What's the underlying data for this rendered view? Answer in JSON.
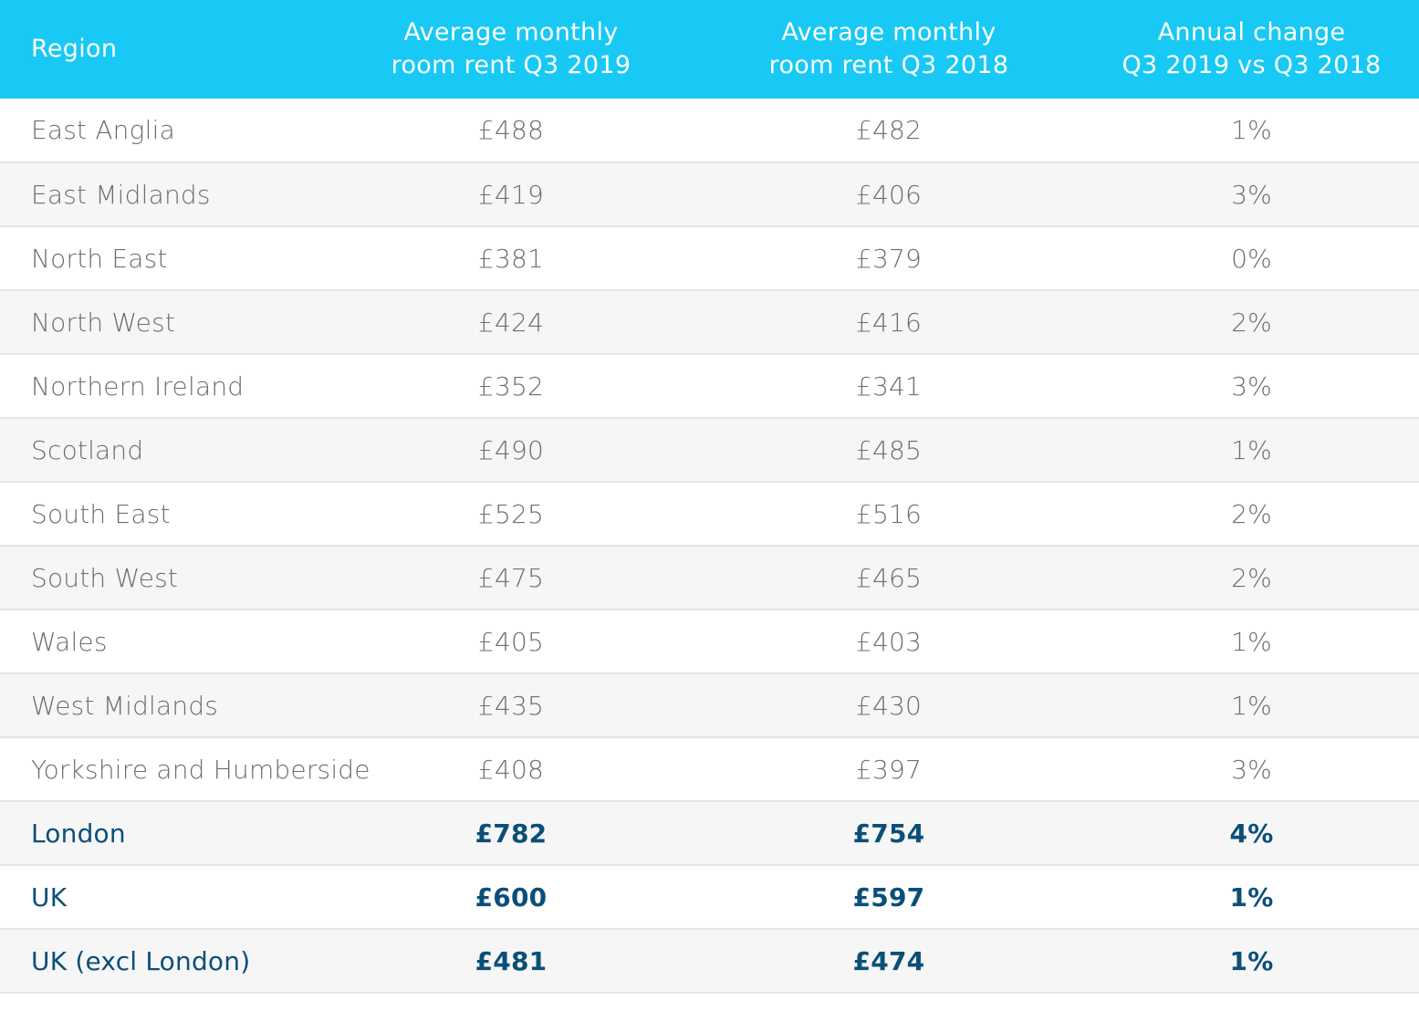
{
  "table": {
    "headers": {
      "region": "Region",
      "rent_2019": [
        "Average monthly",
        "room rent Q3 2019"
      ],
      "rent_2018": [
        "Average monthly",
        "room rent Q3 2018"
      ],
      "change": [
        "Annual change",
        "Q3 2019 vs Q3 2018"
      ]
    },
    "rows": [
      {
        "region": "East Anglia",
        "rent_2019": "£488",
        "rent_2018": "£482",
        "change": "1%"
      },
      {
        "region": "East Midlands",
        "rent_2019": "£419",
        "rent_2018": "£406",
        "change": "3%"
      },
      {
        "region": "North East",
        "rent_2019": "£381",
        "rent_2018": "£379",
        "change": "0%"
      },
      {
        "region": "North West",
        "rent_2019": "£424",
        "rent_2018": "£416",
        "change": "2%"
      },
      {
        "region": "Northern Ireland",
        "rent_2019": "£352",
        "rent_2018": "£341",
        "change": "3%"
      },
      {
        "region": "Scotland",
        "rent_2019": "£490",
        "rent_2018": "£485",
        "change": "1%"
      },
      {
        "region": "South East",
        "rent_2019": "£525",
        "rent_2018": "£516",
        "change": "2%"
      },
      {
        "region": "South West",
        "rent_2019": "£475",
        "rent_2018": "£465",
        "change": "2%"
      },
      {
        "region": "Wales",
        "rent_2019": "£405",
        "rent_2018": "£403",
        "change": "1%"
      },
      {
        "region": "West Midlands",
        "rent_2019": "£435",
        "rent_2018": "£430",
        "change": "1%"
      },
      {
        "region": "Yorkshire and Humberside",
        "rent_2019": "£408",
        "rent_2018": "£397",
        "change": "3%"
      },
      {
        "region": "London",
        "rent_2019": "£782",
        "rent_2018": "£754",
        "change": "4%"
      },
      {
        "region": "UK",
        "rent_2019": "£600",
        "rent_2018": "£597",
        "change": "1%"
      },
      {
        "region": "UK (excl London)",
        "rent_2019": "£481",
        "rent_2018": "£474",
        "change": "1%"
      }
    ]
  },
  "colors": {
    "header_bg": "#17c9f4",
    "header_text": "#ffffff",
    "body_text": "#6e6e6e",
    "highlight_text": "#0b4f78",
    "stripe_bg": "#f6f6f6",
    "divider": "#e4e4e4"
  }
}
